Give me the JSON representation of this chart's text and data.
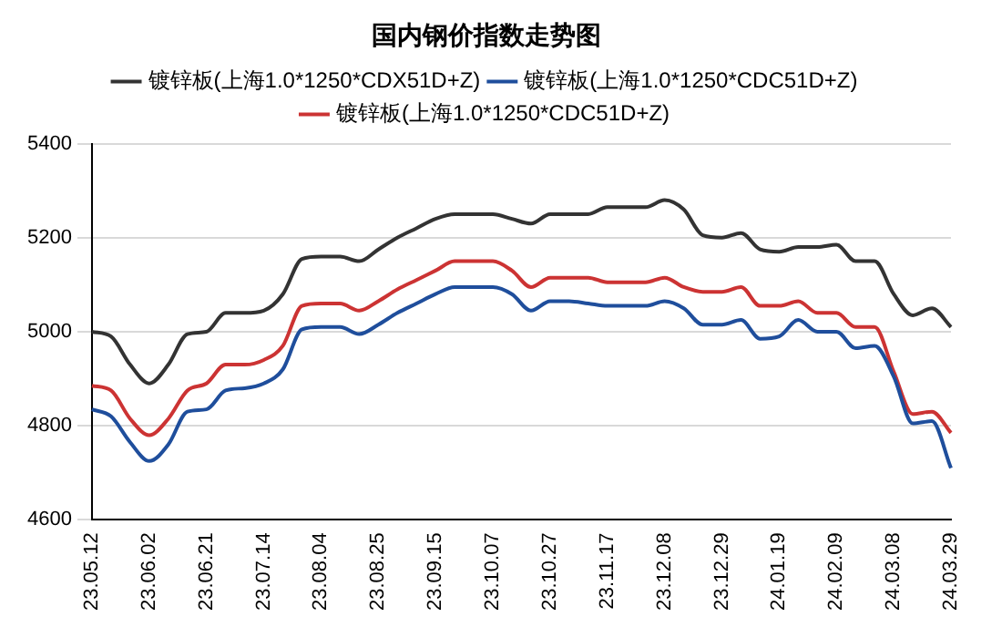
{
  "chart_data": {
    "type": "line",
    "title": "国内钢价指数走势图",
    "categories": [
      "23.05.12",
      null,
      null,
      "23.06.02",
      null,
      null,
      "23.06.21",
      null,
      null,
      "23.07.14",
      null,
      null,
      "23.08.04",
      null,
      null,
      "23.08.25",
      null,
      null,
      "23.09.15",
      null,
      null,
      "23.10.07",
      null,
      null,
      "23.10.27",
      null,
      null,
      "23.11.17",
      null,
      null,
      "23.12.08",
      null,
      null,
      "23.12.29",
      null,
      null,
      "24.01.19",
      null,
      null,
      "24.02.09",
      null,
      null,
      "24.03.08",
      null,
      null,
      "24.03.29"
    ],
    "series": [
      {
        "name": "镀锌板(上海1.0*1250*CDX51D+Z)",
        "color": "#333333",
        "values": [
          5000,
          4990,
          4930,
          4890,
          4930,
          4995,
          5000,
          5040,
          5040,
          5045,
          5080,
          5155,
          5160,
          5160,
          5150,
          5175,
          5200,
          5220,
          5240,
          5250,
          5250,
          5250,
          5240,
          5230,
          5250,
          5250,
          5250,
          5265,
          5265,
          5265,
          5280,
          5260,
          5205,
          5200,
          5210,
          5175,
          5170,
          5180,
          5180,
          5185,
          5150,
          5150,
          5080,
          5035,
          5050,
          5010
        ]
      },
      {
        "name": "镀锌板(上海1.0*1250*CDC51D+Z)",
        "color": "#1f4e9c",
        "values": [
          4835,
          4820,
          4765,
          4725,
          4760,
          4830,
          4835,
          4875,
          4880,
          4890,
          4920,
          5005,
          5010,
          5010,
          4995,
          5015,
          5040,
          5060,
          5080,
          5095,
          5095,
          5095,
          5080,
          5045,
          5065,
          5065,
          5060,
          5055,
          5055,
          5055,
          5065,
          5050,
          5015,
          5015,
          5025,
          4985,
          4990,
          5025,
          5000,
          5000,
          4965,
          4970,
          4905,
          4805,
          4810,
          4710
        ]
      },
      {
        "name": "镀锌板(上海1.0*1250*CDC51D+Z)",
        "color": "#cc3333",
        "values": [
          4885,
          4875,
          4815,
          4780,
          4815,
          4875,
          4890,
          4930,
          4930,
          4940,
          4970,
          5055,
          5060,
          5060,
          5045,
          5065,
          5090,
          5110,
          5130,
          5150,
          5150,
          5150,
          5130,
          5095,
          5115,
          5115,
          5115,
          5105,
          5105,
          5105,
          5115,
          5095,
          5085,
          5085,
          5095,
          5055,
          5055,
          5065,
          5040,
          5040,
          5010,
          5010,
          4915,
          4825,
          4830,
          4785
        ]
      }
    ],
    "ylim": [
      4600,
      5400
    ],
    "yticks": [
      4600,
      4800,
      5000,
      5200,
      5400
    ],
    "grid": "y",
    "legend": "top",
    "marker": "none",
    "line_style": "solid"
  }
}
